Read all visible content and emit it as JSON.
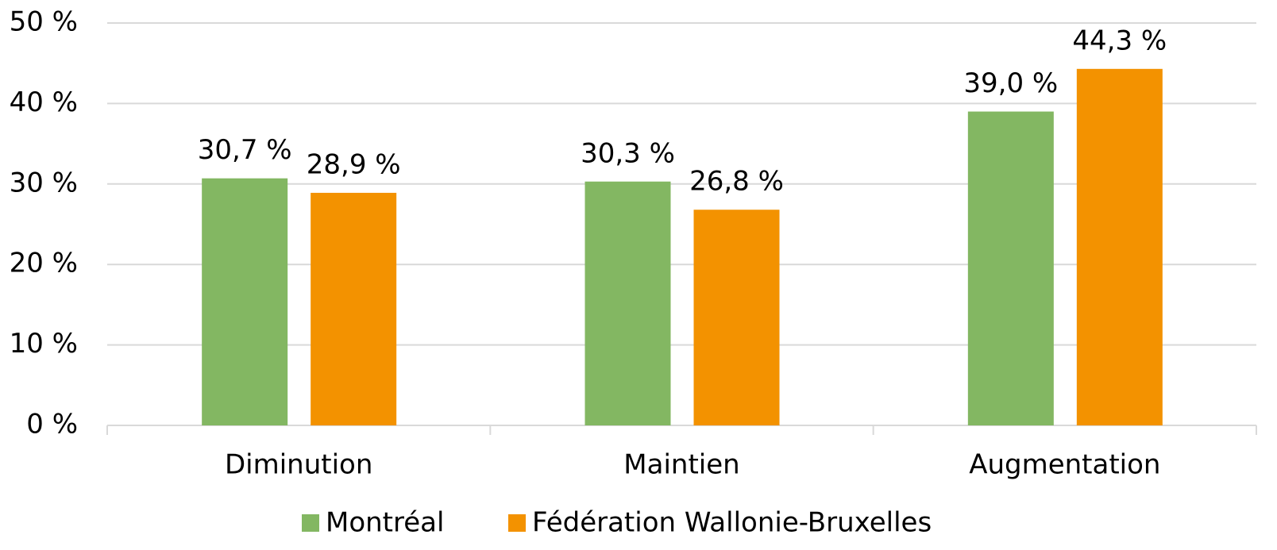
{
  "chart_data": {
    "type": "bar",
    "categories": [
      "Diminution",
      "Maintien",
      "Augmentation"
    ],
    "series": [
      {
        "name": "Montréal",
        "color": "#83b762",
        "values": [
          30.7,
          30.3,
          39.0
        ],
        "value_labels": [
          "30,7 %",
          "30,3 %",
          "39,0 %"
        ]
      },
      {
        "name": "Fédération Wallonie-Bruxelles",
        "color": "#f39200",
        "values": [
          28.9,
          26.8,
          44.3
        ],
        "value_labels": [
          "28,9 %",
          "26,8 %",
          "44,3 %"
        ]
      }
    ],
    "ylim": [
      0,
      50
    ],
    "yticks": [
      {
        "value": 0,
        "label": "0 %"
      },
      {
        "value": 10,
        "label": "10 %"
      },
      {
        "value": 20,
        "label": "20 %"
      },
      {
        "value": 30,
        "label": "30 %"
      },
      {
        "value": 40,
        "label": "40 %"
      },
      {
        "value": 50,
        "label": "50 %"
      }
    ],
    "grid": true,
    "legend": "bottom"
  }
}
